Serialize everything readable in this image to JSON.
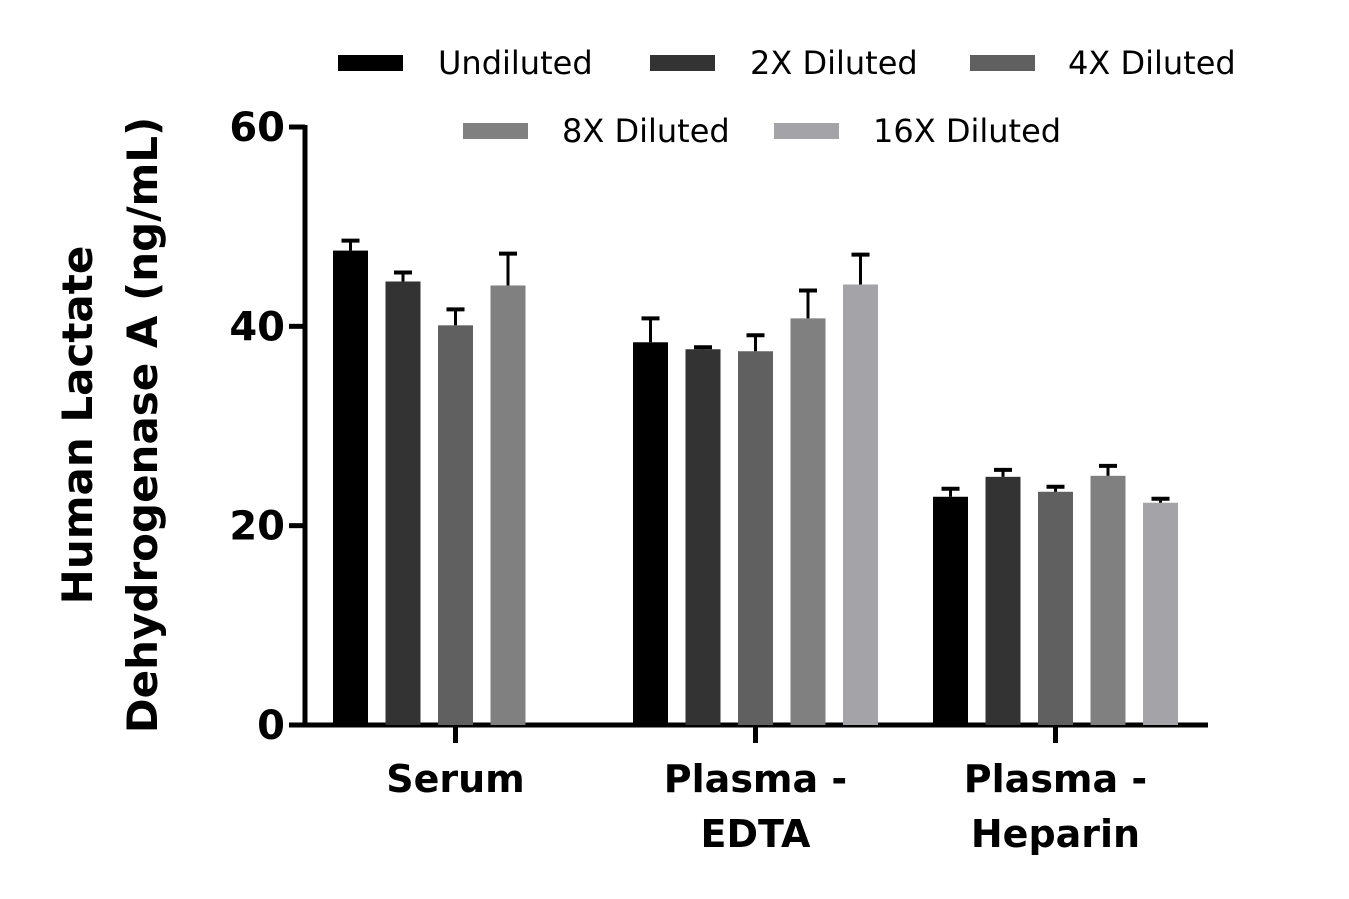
{
  "chart_data": {
    "type": "bar",
    "categories": [
      [
        "Serum"
      ],
      [
        "Plasma -",
        "EDTA"
      ],
      [
        "Plasma -",
        "Heparin"
      ]
    ],
    "series": [
      {
        "name": "Undiluted",
        "color": "#000000",
        "values": [
          47.6,
          38.4,
          22.9
        ],
        "errors": [
          1.0,
          2.4,
          0.8
        ]
      },
      {
        "name": "2X Diluted",
        "color": "#333333",
        "values": [
          44.5,
          37.7,
          24.9
        ],
        "errors": [
          0.9,
          0.2,
          0.7
        ]
      },
      {
        "name": "4X Diluted",
        "color": "#606060",
        "values": [
          40.1,
          37.5,
          23.4
        ],
        "errors": [
          1.6,
          1.6,
          0.5
        ]
      },
      {
        "name": "8X Diluted",
        "color": "#808080",
        "values": [
          44.1,
          40.8,
          25.0
        ],
        "errors": [
          3.2,
          2.8,
          1.0
        ]
      },
      {
        "name": "16X Diluted",
        "color": "#a4a4a8",
        "values": [
          null,
          44.2,
          22.3
        ],
        "errors": [
          null,
          3.0,
          0.4
        ]
      }
    ],
    "ylabel": [
      "Human Lactate",
      "Dehydrogenase A (ng/mL)"
    ],
    "ylim": [
      0,
      60
    ],
    "yticks": [
      0,
      20,
      40,
      60
    ],
    "legend_placement": "top",
    "grid": false
  }
}
